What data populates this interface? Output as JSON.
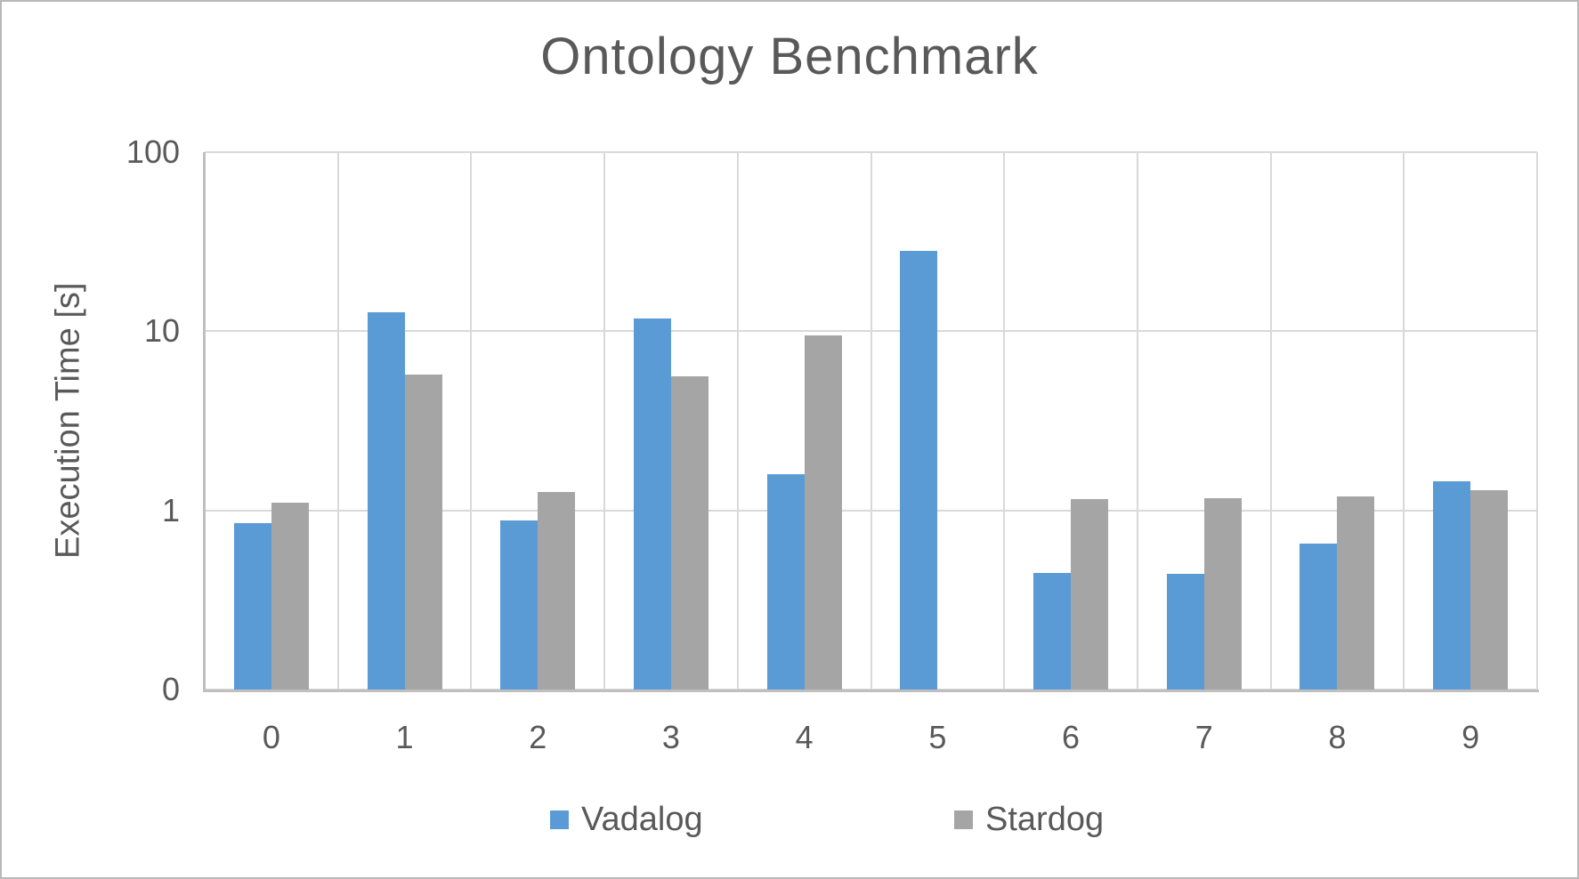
{
  "chart_data": {
    "type": "bar",
    "title": "Ontology Benchmark",
    "ylabel": "Execution Time [s]",
    "xlabel": "",
    "y_scale": "log",
    "ylim": [
      0.1,
      100
    ],
    "yticks": [
      {
        "value": 100,
        "label": "100"
      },
      {
        "value": 10,
        "label": "10"
      },
      {
        "value": 1,
        "label": "1"
      },
      {
        "value": 0.1,
        "label": "0"
      }
    ],
    "categories": [
      "0",
      "1",
      "2",
      "3",
      "4",
      "5",
      "6",
      "7",
      "8",
      "9"
    ],
    "series": [
      {
        "name": "Vadalog",
        "color": "#5B9BD5",
        "values": [
          0.85,
          12.8,
          0.88,
          11.8,
          1.6,
          28,
          0.45,
          0.44,
          0.65,
          1.45
        ]
      },
      {
        "name": "Stardog",
        "color": "#A5A5A5",
        "values": [
          1.1,
          5.7,
          1.27,
          5.6,
          9.5,
          null,
          1.15,
          1.17,
          1.2,
          1.3
        ]
      }
    ],
    "grid": true,
    "legend_position": "bottom"
  },
  "colors": {
    "text": "#595959",
    "gridline": "#D9D9D9",
    "axis_line": "#BFBFBF",
    "background": "#FFFFFF",
    "vadalog_blue": "#5B9BD5",
    "stardog_gray": "#A5A5A5"
  }
}
